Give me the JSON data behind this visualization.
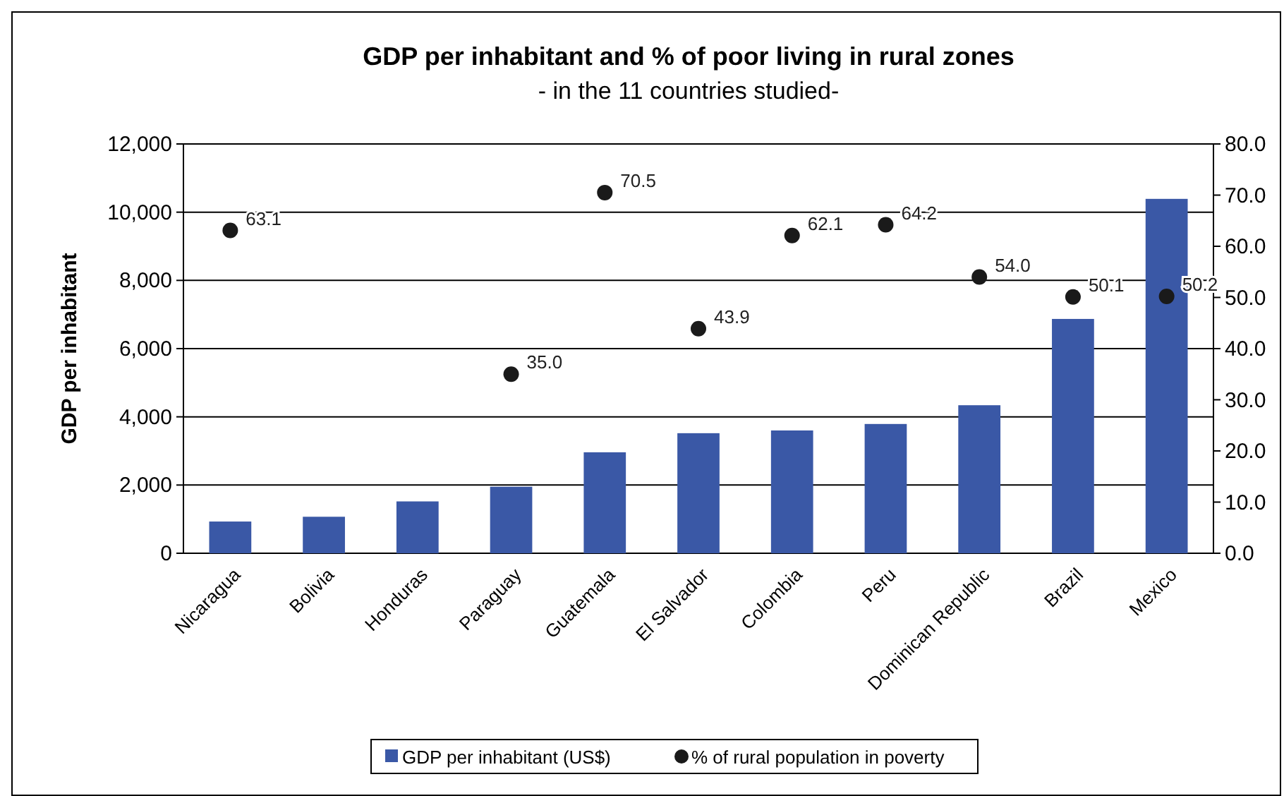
{
  "chart_data": {
    "type": "bar",
    "title": "GDP per inhabitant and % of poor living in rural zones",
    "subtitle": "- in the 11 countries studied-",
    "ylabel": "GDP per inhabitant",
    "categories": [
      "Nicaragua",
      "Bolivia",
      "Honduras",
      "Paraguay",
      "Guatemala",
      "El Salvador",
      "Colombia",
      "Peru",
      "Dominican Republic",
      "Brazil",
      "Mexico"
    ],
    "series": [
      {
        "name": "GDP per inhabitant (US$)",
        "color": "#3a58a6",
        "values": [
          930,
          1070,
          1520,
          1950,
          2960,
          3520,
          3600,
          3790,
          4340,
          6870,
          10390
        ]
      },
      {
        "name": "% of rural population in poverty",
        "type": "scatter",
        "axis": "y2",
        "color": "#1a1a1a",
        "marker": "circle",
        "values": [
          63.1,
          null,
          null,
          35.0,
          70.5,
          43.9,
          62.1,
          64.2,
          54.0,
          50.1,
          50.2
        ],
        "value_labels": [
          "63.1",
          null,
          null,
          "35.0",
          "70.5",
          "43.9",
          "62.1",
          "64.2",
          "54.0",
          "50.1",
          "50.2"
        ]
      }
    ],
    "ylim": [
      0,
      12000
    ],
    "yticks": [
      {
        "value": 0,
        "label": "0"
      },
      {
        "value": 2000,
        "label": "2,000"
      },
      {
        "value": 4000,
        "label": "4,000"
      },
      {
        "value": 6000,
        "label": "6,000"
      },
      {
        "value": 8000,
        "label": "8,000"
      },
      {
        "value": 10000,
        "label": "10,000"
      },
      {
        "value": 12000,
        "label": "12,000"
      }
    ],
    "y2lim": [
      0,
      80
    ],
    "y2ticks": [
      {
        "value": 0,
        "label": "0.0"
      },
      {
        "value": 10,
        "label": "10.0"
      },
      {
        "value": 20,
        "label": "20.0"
      },
      {
        "value": 30,
        "label": "30.0"
      },
      {
        "value": 40,
        "label": "40.0"
      },
      {
        "value": 50,
        "label": "50.0"
      },
      {
        "value": 60,
        "label": "60.0"
      },
      {
        "value": 70,
        "label": "70.0"
      },
      {
        "value": 80,
        "label": "80.0"
      }
    ],
    "grid": "y",
    "legend": "bottom"
  }
}
